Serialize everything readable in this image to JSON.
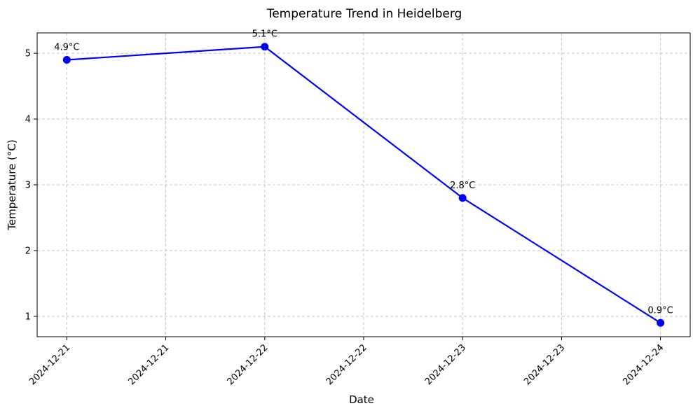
{
  "chart_data": {
    "type": "line",
    "title": "Temperature Trend in Heidelberg",
    "xlabel": "Date",
    "ylabel": "Temperature (°C)",
    "x_tick_labels": [
      "2024-12-21",
      "2024-12-21",
      "2024-12-22",
      "2024-12-22",
      "2024-12-23",
      "2024-12-23",
      "2024-12-24"
    ],
    "x_tick_positions_days": [
      0,
      0.5,
      1,
      1.5,
      2,
      2.5,
      3
    ],
    "y_ticks": [
      "1",
      "2",
      "3",
      "4",
      "5"
    ],
    "xlim_days": [
      -0.15,
      3.15
    ],
    "ylim": [
      0.69,
      5.31
    ],
    "series": [
      {
        "x": [
          "2024-12-21",
          "2024-12-22",
          "2024-12-23",
          "2024-12-24"
        ],
        "values": [
          4.9,
          5.1,
          2.8,
          0.9
        ],
        "labels": [
          "4.9°C",
          "5.1°C",
          "2.8°C",
          "0.9°C"
        ],
        "color": "#0000ff",
        "marker": "circle"
      }
    ],
    "grid": true,
    "grid_style": "dashed",
    "legend": "none"
  }
}
